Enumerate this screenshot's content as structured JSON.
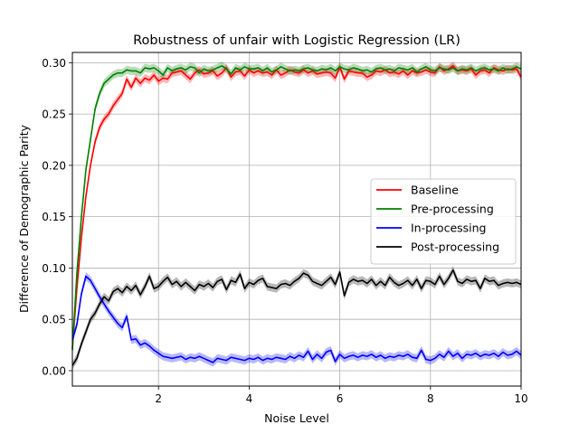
{
  "chart_data": {
    "type": "line",
    "title": "Robustness of unfair with Logistic Regression (LR)",
    "xlabel": "Noise Level",
    "ylabel": "Difference of Demographic Parity",
    "xlim": [
      0.1,
      10
    ],
    "ylim": [
      -0.015,
      0.31
    ],
    "xticks": [
      2,
      4,
      6,
      8,
      10
    ],
    "yticks": [
      0.0,
      0.05,
      0.1,
      0.15,
      0.2,
      0.25,
      0.3
    ],
    "grid": true,
    "legend_position": "center-right",
    "x": [
      0.1,
      0.2,
      0.3,
      0.4,
      0.5,
      0.6,
      0.7,
      0.8,
      0.9,
      1.0,
      1.1,
      1.2,
      1.3,
      1.4,
      1.5,
      1.6,
      1.7,
      1.8,
      1.9,
      2.0,
      2.1,
      2.2,
      2.3,
      2.4,
      2.5,
      2.6,
      2.7,
      2.8,
      2.9,
      3.0,
      3.1,
      3.2,
      3.3,
      3.4,
      3.5,
      3.6,
      3.7,
      3.8,
      3.9,
      4.0,
      4.1,
      4.2,
      4.3,
      4.4,
      4.5,
      4.6,
      4.7,
      4.8,
      4.9,
      5.0,
      5.1,
      5.2,
      5.3,
      5.4,
      5.5,
      5.6,
      5.7,
      5.8,
      5.9,
      6.0,
      6.1,
      6.2,
      6.3,
      6.4,
      6.5,
      6.6,
      6.7,
      6.8,
      6.9,
      7.0,
      7.1,
      7.2,
      7.3,
      7.4,
      7.5,
      7.6,
      7.7,
      7.8,
      7.9,
      8.0,
      8.1,
      8.2,
      8.3,
      8.4,
      8.5,
      8.6,
      8.7,
      8.8,
      8.9,
      9.0,
      9.1,
      9.2,
      9.3,
      9.4,
      9.5,
      9.6,
      9.7,
      9.8,
      9.9,
      10.0
    ],
    "series": [
      {
        "name": "Baseline",
        "color": "#ff0000",
        "values": [
          0.022,
          0.08,
          0.13,
          0.17,
          0.2,
          0.223,
          0.237,
          0.245,
          0.25,
          0.258,
          0.264,
          0.27,
          0.284,
          0.276,
          0.285,
          0.28,
          0.285,
          0.283,
          0.288,
          0.282,
          0.285,
          0.284,
          0.29,
          0.291,
          0.292,
          0.288,
          0.284,
          0.29,
          0.293,
          0.289,
          0.29,
          0.292,
          0.287,
          0.29,
          0.295,
          0.286,
          0.291,
          0.292,
          0.287,
          0.293,
          0.29,
          0.292,
          0.29,
          0.291,
          0.288,
          0.293,
          0.288,
          0.29,
          0.293,
          0.291,
          0.29,
          0.293,
          0.29,
          0.292,
          0.289,
          0.29,
          0.291,
          0.29,
          0.285,
          0.296,
          0.284,
          0.292,
          0.291,
          0.29,
          0.29,
          0.286,
          0.288,
          0.292,
          0.291,
          0.293,
          0.29,
          0.291,
          0.289,
          0.292,
          0.288,
          0.292,
          0.29,
          0.291,
          0.293,
          0.291,
          0.29,
          0.296,
          0.292,
          0.294,
          0.297,
          0.292,
          0.293,
          0.292,
          0.294,
          0.288,
          0.292,
          0.293,
          0.29,
          0.295,
          0.293,
          0.292,
          0.294,
          0.293,
          0.294,
          0.286
        ]
      },
      {
        "name": "Pre-processing",
        "color": "#008000",
        "values": [
          0.02,
          0.095,
          0.15,
          0.196,
          0.225,
          0.255,
          0.27,
          0.28,
          0.284,
          0.288,
          0.29,
          0.29,
          0.293,
          0.292,
          0.292,
          0.29,
          0.295,
          0.294,
          0.295,
          0.292,
          0.288,
          0.295,
          0.292,
          0.294,
          0.295,
          0.293,
          0.296,
          0.295,
          0.29,
          0.294,
          0.292,
          0.293,
          0.295,
          0.297,
          0.294,
          0.289,
          0.295,
          0.293,
          0.296,
          0.294,
          0.294,
          0.295,
          0.292,
          0.295,
          0.291,
          0.293,
          0.296,
          0.294,
          0.292,
          0.293,
          0.292,
          0.294,
          0.295,
          0.293,
          0.292,
          0.294,
          0.293,
          0.295,
          0.292,
          0.296,
          0.294,
          0.293,
          0.295,
          0.294,
          0.292,
          0.293,
          0.291,
          0.294,
          0.295,
          0.293,
          0.294,
          0.292,
          0.295,
          0.294,
          0.293,
          0.295,
          0.291,
          0.294,
          0.296,
          0.293,
          0.292,
          0.295,
          0.294,
          0.293,
          0.295,
          0.292,
          0.294,
          0.293,
          0.295,
          0.292,
          0.294,
          0.295,
          0.293,
          0.294,
          0.292,
          0.295,
          0.293,
          0.294,
          0.296,
          0.294
        ]
      },
      {
        "name": "In-processing",
        "color": "#0000ff",
        "values": [
          0.03,
          0.045,
          0.075,
          0.092,
          0.088,
          0.08,
          0.072,
          0.065,
          0.058,
          0.052,
          0.046,
          0.042,
          0.053,
          0.03,
          0.031,
          0.025,
          0.027,
          0.024,
          0.02,
          0.017,
          0.014,
          0.013,
          0.012,
          0.013,
          0.014,
          0.011,
          0.013,
          0.012,
          0.014,
          0.012,
          0.01,
          0.008,
          0.012,
          0.011,
          0.01,
          0.013,
          0.012,
          0.011,
          0.01,
          0.012,
          0.011,
          0.013,
          0.01,
          0.012,
          0.011,
          0.013,
          0.012,
          0.011,
          0.014,
          0.012,
          0.015,
          0.013,
          0.019,
          0.011,
          0.016,
          0.012,
          0.018,
          0.02,
          0.009,
          0.016,
          0.012,
          0.014,
          0.015,
          0.013,
          0.015,
          0.014,
          0.016,
          0.013,
          0.015,
          0.012,
          0.014,
          0.013,
          0.015,
          0.014,
          0.016,
          0.013,
          0.012,
          0.02,
          0.011,
          0.01,
          0.012,
          0.016,
          0.013,
          0.019,
          0.014,
          0.017,
          0.012,
          0.016,
          0.015,
          0.017,
          0.014,
          0.016,
          0.015,
          0.017,
          0.014,
          0.018,
          0.015,
          0.016,
          0.019,
          0.015
        ]
      },
      {
        "name": "Post-processing",
        "color": "#000000",
        "values": [
          0.005,
          0.012,
          0.026,
          0.038,
          0.05,
          0.056,
          0.065,
          0.072,
          0.068,
          0.077,
          0.08,
          0.076,
          0.082,
          0.078,
          0.083,
          0.074,
          0.082,
          0.092,
          0.08,
          0.082,
          0.087,
          0.091,
          0.084,
          0.087,
          0.082,
          0.086,
          0.082,
          0.078,
          0.084,
          0.082,
          0.085,
          0.081,
          0.087,
          0.089,
          0.079,
          0.088,
          0.086,
          0.094,
          0.08,
          0.086,
          0.084,
          0.088,
          0.09,
          0.082,
          0.081,
          0.08,
          0.084,
          0.085,
          0.083,
          0.087,
          0.09,
          0.095,
          0.093,
          0.087,
          0.085,
          0.083,
          0.087,
          0.091,
          0.084,
          0.096,
          0.073,
          0.086,
          0.089,
          0.087,
          0.088,
          0.085,
          0.089,
          0.083,
          0.087,
          0.083,
          0.091,
          0.086,
          0.083,
          0.085,
          0.088,
          0.083,
          0.089,
          0.08,
          0.088,
          0.087,
          0.084,
          0.092,
          0.084,
          0.09,
          0.098,
          0.087,
          0.085,
          0.089,
          0.087,
          0.088,
          0.08,
          0.09,
          0.087,
          0.088,
          0.083,
          0.085,
          0.086,
          0.085,
          0.086,
          0.084
        ]
      }
    ]
  }
}
